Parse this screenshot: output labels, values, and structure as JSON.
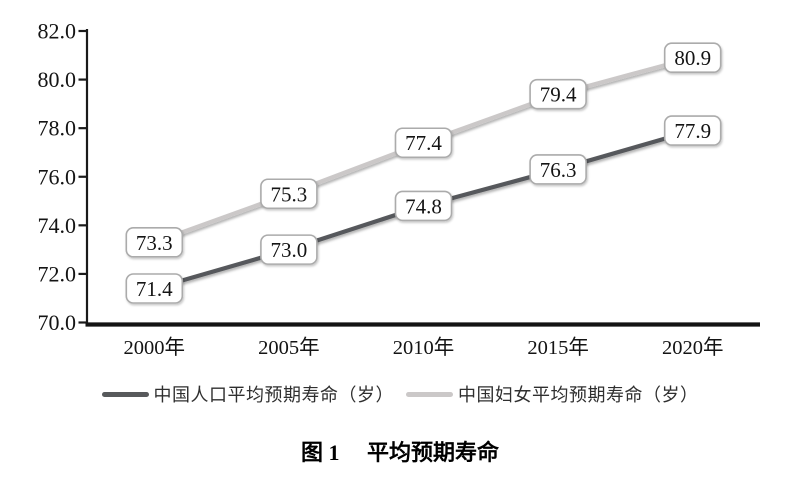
{
  "figure": {
    "caption_label": "图 1"
  },
  "chart_data": {
    "type": "line",
    "title": "平均预期寿命",
    "categories": [
      "2000年",
      "2005年",
      "2010年",
      "2015年",
      "2020年"
    ],
    "series": [
      {
        "name": "中国人口平均预期寿命（岁）",
        "color": "#57595b",
        "values": [
          71.4,
          73.0,
          74.8,
          76.3,
          77.9
        ]
      },
      {
        "name": "中国妇女平均预期寿命（岁）",
        "color": "#cbc8c8",
        "values": [
          73.3,
          75.3,
          77.4,
          79.4,
          80.9
        ]
      }
    ],
    "xlabel": "",
    "ylabel": "",
    "ylim": [
      70.0,
      82.0
    ],
    "y_tick_step": 2.0,
    "y_tick_labels": [
      "70.0",
      "72.0",
      "74.0",
      "76.0",
      "78.0",
      "80.0",
      "82.0"
    ],
    "data_labels": true,
    "grid": false,
    "legend_position": "bottom",
    "axis_color": "#1a1a1a",
    "label_box": {
      "fill": "#ffffff",
      "border": "#ababab"
    }
  }
}
